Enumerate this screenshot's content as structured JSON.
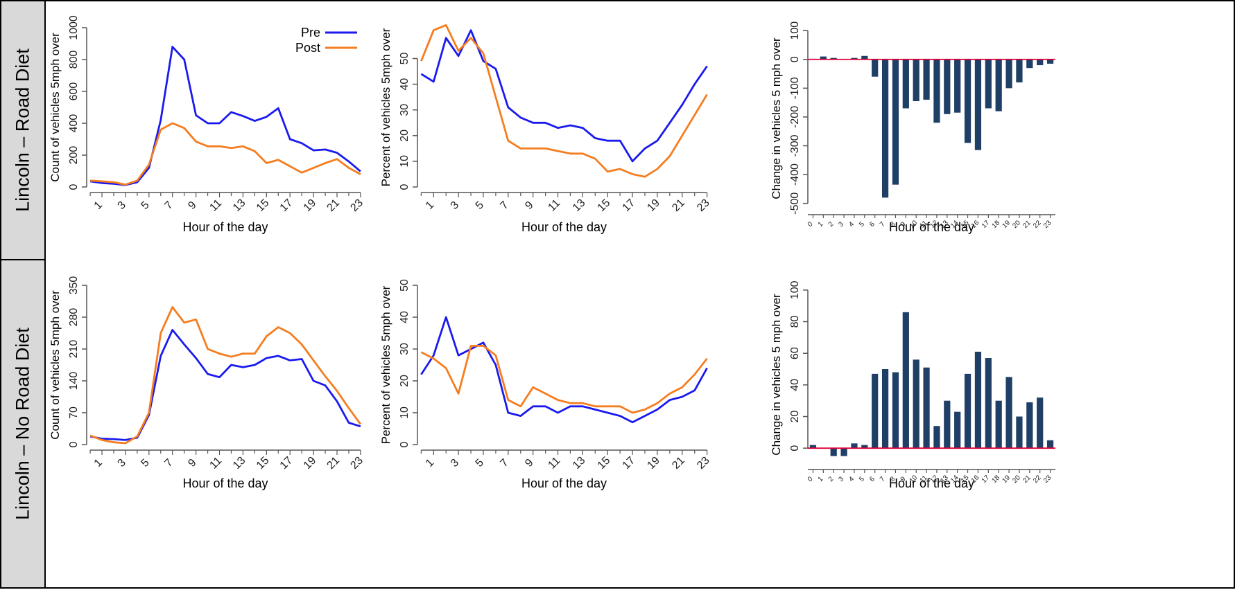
{
  "row_labels": [
    "Lincoln – Road Diet",
    "Lincoln – No Road Diet"
  ],
  "colors": {
    "pre": "#1a1aee",
    "post": "#f57d1f",
    "bar": "#1f3f66",
    "zero_line": "#e0003a",
    "axis": "#555555"
  },
  "chart_data": [
    {
      "type": "line",
      "ylabel": "Count of vehicles 5mph over",
      "xlabel": "Hour of the day",
      "ylim": [
        0,
        1000
      ],
      "yticks": [
        0,
        200,
        400,
        600,
        800,
        1000
      ],
      "xlim": [
        -0.3,
        23.3
      ],
      "xticks": [
        1,
        3,
        5,
        7,
        9,
        11,
        13,
        15,
        17,
        19,
        21,
        23
      ],
      "x": [
        0,
        1,
        2,
        3,
        4,
        5,
        6,
        7,
        8,
        9,
        10,
        11,
        12,
        13,
        14,
        15,
        16,
        17,
        18,
        19,
        20,
        21,
        22,
        23
      ],
      "legend": "top-right",
      "series": [
        {
          "name": "Pre",
          "key": "pre",
          "values": [
            35,
            25,
            20,
            12,
            30,
            120,
            420,
            880,
            800,
            450,
            400,
            400,
            470,
            445,
            415,
            440,
            495,
            300,
            275,
            230,
            235,
            215,
            160,
            98
          ]
        },
        {
          "name": "Post",
          "key": "post",
          "values": [
            40,
            35,
            30,
            15,
            40,
            140,
            360,
            400,
            370,
            285,
            255,
            255,
            245,
            255,
            225,
            150,
            170,
            130,
            90,
            120,
            150,
            175,
            120,
            80
          ]
        }
      ]
    },
    {
      "type": "line",
      "ylabel": "Percent of vehicles 5mph over",
      "xlabel": "Hour of the day",
      "ylim": [
        0,
        62
      ],
      "yticks": [
        0,
        10,
        20,
        30,
        40,
        50
      ],
      "xlim": [
        -0.3,
        23.3
      ],
      "xticks": [
        1,
        3,
        5,
        7,
        9,
        11,
        13,
        15,
        17,
        19,
        21,
        23
      ],
      "x": [
        0,
        1,
        2,
        3,
        4,
        5,
        6,
        7,
        8,
        9,
        10,
        11,
        12,
        13,
        14,
        15,
        16,
        17,
        18,
        19,
        20,
        21,
        22,
        23
      ],
      "series": [
        {
          "key": "pre",
          "values": [
            44,
            41,
            58,
            51,
            61,
            49,
            46,
            31,
            27,
            25,
            25,
            23,
            24,
            23,
            19,
            18,
            18,
            10,
            15,
            18,
            25,
            32,
            40,
            47
          ]
        },
        {
          "key": "post",
          "values": [
            49,
            61,
            63,
            53,
            58,
            52,
            35,
            18,
            15,
            15,
            15,
            14,
            13,
            13,
            11,
            6,
            7,
            5,
            4,
            7,
            12,
            20,
            28,
            36
          ]
        }
      ]
    },
    {
      "type": "bar",
      "ylabel": "Change in vehicles 5 mph over",
      "xlabel": "Hour of the day",
      "ylim": [
        -520,
        110
      ],
      "yticks": [
        -500,
        -400,
        -300,
        -200,
        -100,
        0,
        100
      ],
      "categories": [
        "0",
        "1",
        "2",
        "3",
        "4",
        "5",
        "6",
        "7",
        "8",
        "9",
        "10",
        "11",
        "12",
        "13",
        "14",
        "15",
        "16",
        "17",
        "18",
        "19",
        "20",
        "21",
        "22",
        "23"
      ],
      "values": [
        2,
        10,
        5,
        0,
        5,
        12,
        -60,
        -480,
        -435,
        -170,
        -145,
        -140,
        -220,
        -190,
        -185,
        -290,
        -315,
        -170,
        -180,
        -100,
        -80,
        -30,
        -20,
        -15
      ]
    },
    {
      "type": "line",
      "ylabel": "Count of vehicles 5mph over",
      "xlabel": "Hour of the day",
      "ylim": [
        0,
        350
      ],
      "yticks": [
        0,
        70,
        140,
        210,
        280,
        350
      ],
      "xlim": [
        -0.3,
        23.3
      ],
      "xticks": [
        1,
        3,
        5,
        7,
        9,
        11,
        13,
        15,
        17,
        19,
        21,
        23
      ],
      "x": [
        0,
        1,
        2,
        3,
        4,
        5,
        6,
        7,
        8,
        9,
        10,
        11,
        12,
        13,
        14,
        15,
        16,
        17,
        18,
        19,
        20,
        21,
        22,
        23
      ],
      "series": [
        {
          "key": "pre",
          "values": [
            18,
            13,
            12,
            10,
            15,
            65,
            195,
            252,
            220,
            190,
            155,
            148,
            175,
            170,
            175,
            190,
            195,
            185,
            188,
            140,
            130,
            95,
            48,
            40
          ]
        },
        {
          "key": "post",
          "values": [
            20,
            10,
            5,
            3,
            18,
            70,
            245,
            302,
            268,
            275,
            210,
            200,
            193,
            200,
            200,
            238,
            258,
            245,
            220,
            185,
            150,
            118,
            80,
            45
          ]
        }
      ]
    },
    {
      "type": "line",
      "ylabel": "Percent of vehicles 5mph over",
      "xlabel": "Hour of the day",
      "ylim": [
        0,
        50
      ],
      "yticks": [
        0,
        10,
        20,
        30,
        40,
        50
      ],
      "xlim": [
        -0.3,
        23.3
      ],
      "xticks": [
        1,
        3,
        5,
        7,
        9,
        11,
        13,
        15,
        17,
        19,
        21,
        23
      ],
      "x": [
        0,
        1,
        2,
        3,
        4,
        5,
        6,
        7,
        8,
        9,
        10,
        11,
        12,
        13,
        14,
        15,
        16,
        17,
        18,
        19,
        20,
        21,
        22,
        23
      ],
      "series": [
        {
          "key": "pre",
          "values": [
            22,
            28,
            40,
            28,
            30,
            32,
            25,
            10,
            9,
            12,
            12,
            10,
            12,
            12,
            11,
            10,
            9,
            7,
            9,
            11,
            14,
            15,
            17,
            24
          ]
        },
        {
          "key": "post",
          "values": [
            29,
            27,
            24,
            16,
            31,
            31,
            28,
            14,
            12,
            18,
            16,
            14,
            13,
            13,
            12,
            12,
            12,
            10,
            11,
            13,
            16,
            18,
            22,
            27
          ]
        }
      ]
    },
    {
      "type": "bar",
      "ylabel": "Change in vehicles 5 mph over",
      "xlabel": "Hour of the day",
      "ylim": [
        -10,
        103
      ],
      "yticks": [
        0,
        20,
        40,
        60,
        80,
        100
      ],
      "categories": [
        "0",
        "1",
        "2",
        "3",
        "4",
        "5",
        "6",
        "7",
        "8",
        "9",
        "10",
        "11",
        "12",
        "13",
        "14",
        "15",
        "16",
        "17",
        "18",
        "19",
        "20",
        "21",
        "22",
        "23"
      ],
      "values": [
        2,
        0,
        -5,
        -5,
        3,
        2,
        47,
        50,
        48,
        86,
        56,
        51,
        14,
        30,
        23,
        47,
        61,
        57,
        30,
        45,
        20,
        29,
        32,
        5
      ]
    }
  ]
}
